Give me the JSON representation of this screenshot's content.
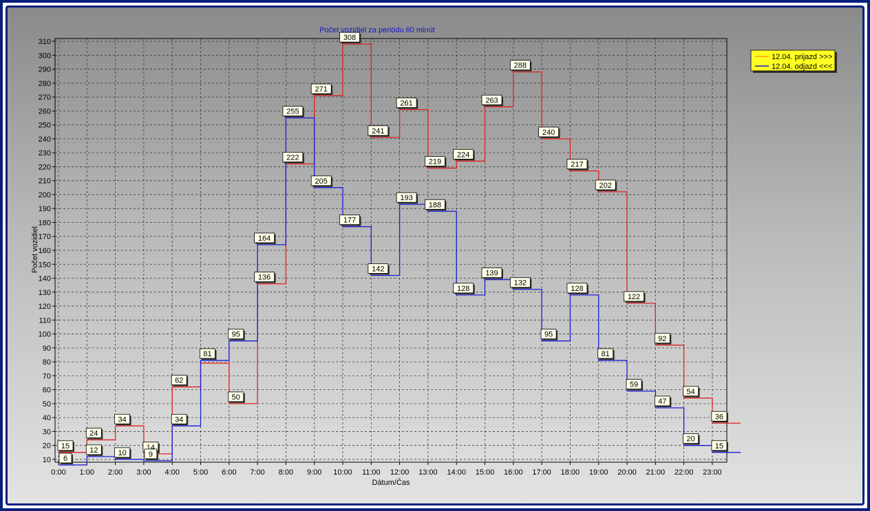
{
  "chart_data": {
    "type": "line",
    "title": "Počet vozidiel za periódu 60 minút",
    "xlabel": "Dátum/Čas",
    "ylabel": "Počet vozidiel",
    "ylim": [
      8,
      312
    ],
    "yticks": [
      10,
      20,
      30,
      40,
      50,
      60,
      70,
      80,
      90,
      100,
      110,
      120,
      130,
      140,
      150,
      160,
      170,
      180,
      190,
      200,
      210,
      220,
      230,
      240,
      250,
      260,
      270,
      280,
      290,
      300,
      310
    ],
    "categories": [
      "0:00",
      "1:00",
      "2:00",
      "3:00",
      "4:00",
      "5:00",
      "6:00",
      "7:00",
      "8:00",
      "9:00",
      "10:00",
      "11:00",
      "12:00",
      "13:00",
      "14:00",
      "15:00",
      "16:00",
      "17:00",
      "18:00",
      "19:00",
      "20:00",
      "21:00",
      "22:00",
      "23:00"
    ],
    "grid": true,
    "legend_position": "top-right",
    "series": [
      {
        "name": "12.04.  prijazd >>>",
        "color": "#e02020",
        "values": [
          15,
          24,
          34,
          14,
          62,
          79,
          50,
          136,
          222,
          271,
          308,
          241,
          261,
          219,
          224,
          263,
          288,
          240,
          217,
          202,
          122,
          92,
          54,
          36
        ]
      },
      {
        "name": "12.04.  odjazd <<<",
        "color": "#1c1cd8",
        "values": [
          6,
          12,
          10,
          9,
          34,
          81,
          95,
          164,
          255,
          205,
          177,
          142,
          193,
          188,
          128,
          139,
          132,
          95,
          128,
          81,
          59,
          47,
          20,
          15
        ]
      }
    ],
    "labels": [
      {
        "series": 0,
        "index": 0,
        "text": "15"
      },
      {
        "series": 0,
        "index": 1,
        "text": "24"
      },
      {
        "series": 0,
        "index": 2,
        "text": "34"
      },
      {
        "series": 0,
        "index": 3,
        "text": "14"
      },
      {
        "series": 0,
        "index": 4,
        "text": "62"
      },
      {
        "series": 0,
        "index": 6,
        "text": "50"
      },
      {
        "series": 0,
        "index": 7,
        "text": "136"
      },
      {
        "series": 0,
        "index": 8,
        "text": "222"
      },
      {
        "series": 0,
        "index": 9,
        "text": "271"
      },
      {
        "series": 0,
        "index": 10,
        "text": "308"
      },
      {
        "series": 0,
        "index": 11,
        "text": "241"
      },
      {
        "series": 0,
        "index": 12,
        "text": "261"
      },
      {
        "series": 0,
        "index": 13,
        "text": "219"
      },
      {
        "series": 0,
        "index": 14,
        "text": "224"
      },
      {
        "series": 0,
        "index": 15,
        "text": "263"
      },
      {
        "series": 0,
        "index": 16,
        "text": "288"
      },
      {
        "series": 0,
        "index": 17,
        "text": "240"
      },
      {
        "series": 0,
        "index": 18,
        "text": "217"
      },
      {
        "series": 0,
        "index": 19,
        "text": "202"
      },
      {
        "series": 0,
        "index": 20,
        "text": "122"
      },
      {
        "series": 0,
        "index": 21,
        "text": "92"
      },
      {
        "series": 0,
        "index": 22,
        "text": "54"
      },
      {
        "series": 0,
        "index": 23,
        "text": "36"
      },
      {
        "series": 1,
        "index": 0,
        "text": "6"
      },
      {
        "series": 1,
        "index": 1,
        "text": "12"
      },
      {
        "series": 1,
        "index": 2,
        "text": "10"
      },
      {
        "series": 1,
        "index": 3,
        "text": "9"
      },
      {
        "series": 1,
        "index": 4,
        "text": "34"
      },
      {
        "series": 1,
        "index": 5,
        "text": "81"
      },
      {
        "series": 1,
        "index": 6,
        "text": "95"
      },
      {
        "series": 1,
        "index": 7,
        "text": "164"
      },
      {
        "series": 1,
        "index": 8,
        "text": "255"
      },
      {
        "series": 1,
        "index": 9,
        "text": "205"
      },
      {
        "series": 1,
        "index": 10,
        "text": "177"
      },
      {
        "series": 1,
        "index": 11,
        "text": "142"
      },
      {
        "series": 1,
        "index": 12,
        "text": "193"
      },
      {
        "series": 1,
        "index": 13,
        "text": "188"
      },
      {
        "series": 1,
        "index": 14,
        "text": "128"
      },
      {
        "series": 1,
        "index": 15,
        "text": "139"
      },
      {
        "series": 1,
        "index": 16,
        "text": "132"
      },
      {
        "series": 1,
        "index": 17,
        "text": "95"
      },
      {
        "series": 1,
        "index": 18,
        "text": "128"
      },
      {
        "series": 1,
        "index": 19,
        "text": "81"
      },
      {
        "series": 1,
        "index": 20,
        "text": "59"
      },
      {
        "series": 1,
        "index": 21,
        "text": "47"
      },
      {
        "series": 1,
        "index": 22,
        "text": "20"
      },
      {
        "series": 1,
        "index": 23,
        "text": "15"
      }
    ]
  }
}
